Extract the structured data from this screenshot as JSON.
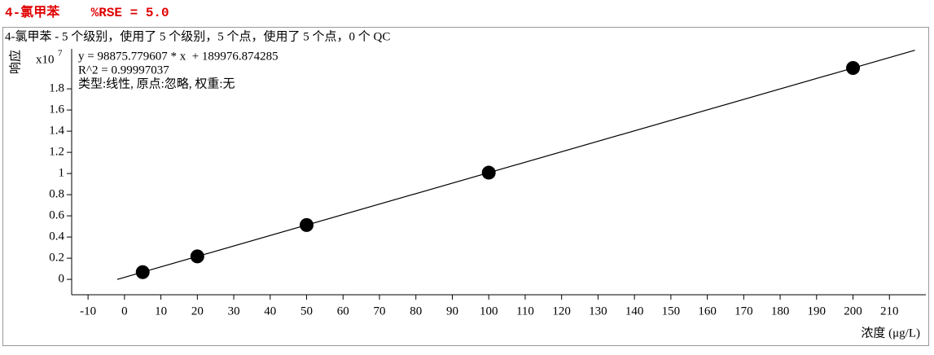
{
  "chart_data": {
    "type": "scatter",
    "title": "4-氯甲苯    %RSE = 5.0",
    "subtitle": "4-氯甲苯 - 5 个级别，使用了 5 个级别，5 个点，使用了 5 个点，0 个 QC",
    "y_label": "响应",
    "y_multiplier": {
      "base": "x10",
      "exponent": "7"
    },
    "x_label": "浓度 (μg/L)",
    "annotations": [
      "y = 98875.779607 * x  + 189976.874285",
      "R^2 = 0.99997037",
      "类型:线性, 原点:忽略, 权重:无"
    ],
    "x": [
      5,
      20,
      50,
      100,
      200
    ],
    "values": [
      0.068,
      0.217,
      0.513,
      1.008,
      1.997
    ],
    "color": "#000000",
    "fit_line": {
      "x": [
        -2,
        217
      ],
      "values": [
        -0.0008,
        2.165
      ]
    },
    "xlim": [
      -14.5,
      220
    ],
    "ylim": [
      -0.13,
      2.17
    ],
    "xticks": [
      -10,
      0,
      10,
      20,
      30,
      40,
      50,
      60,
      70,
      80,
      90,
      100,
      110,
      120,
      130,
      140,
      150,
      160,
      170,
      180,
      190,
      200,
      210
    ],
    "yticks": [
      0,
      0.2,
      0.4,
      0.6,
      0.8,
      1,
      1.2,
      1.4,
      1.6,
      1.8
    ]
  }
}
